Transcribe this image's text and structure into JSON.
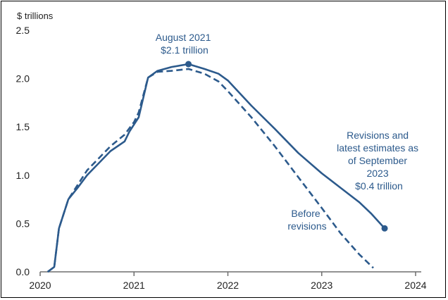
{
  "chart_data": {
    "type": "line",
    "ylabel": "$ trillions",
    "ylim": [
      0,
      2.5
    ],
    "yticks": [
      "0.0",
      "0.5",
      "1.0",
      "1.5",
      "2.0",
      "2.5"
    ],
    "xlim": [
      2020,
      2024
    ],
    "xticks": [
      "2020",
      "2021",
      "2022",
      "2023",
      "2024"
    ],
    "colors": {
      "series": "#2c5a8c",
      "axis": "#6e6e6e",
      "frame": "#000000"
    },
    "series": [
      {
        "name": "Revisions and latest estimates as of September 2023",
        "style": "solid",
        "x": [
          2020.08,
          2020.15,
          2020.2,
          2020.3,
          2020.4,
          2020.5,
          2020.6,
          2020.75,
          2020.9,
          2020.95,
          2021.05,
          2021.15,
          2021.25,
          2021.4,
          2021.58,
          2021.75,
          2021.9,
          2022.0,
          2022.25,
          2022.5,
          2022.75,
          2023.0,
          2023.2,
          2023.4,
          2023.53,
          2023.67
        ],
        "y": [
          0.0,
          0.05,
          0.45,
          0.75,
          0.87,
          1.0,
          1.1,
          1.25,
          1.35,
          1.45,
          1.6,
          2.01,
          2.08,
          2.12,
          2.15,
          2.1,
          2.05,
          1.98,
          1.72,
          1.48,
          1.23,
          1.02,
          0.87,
          0.72,
          0.6,
          0.45
        ]
      },
      {
        "name": "Before revisions",
        "style": "dashed",
        "x": [
          2020.08,
          2020.15,
          2020.2,
          2020.3,
          2020.4,
          2020.5,
          2020.6,
          2020.75,
          2020.9,
          2021.0,
          2021.05,
          2021.15,
          2021.25,
          2021.4,
          2021.58,
          2021.75,
          2021.9,
          2022.0,
          2022.25,
          2022.5,
          2022.75,
          2023.0,
          2023.2,
          2023.4,
          2023.55
        ],
        "y": [
          0.0,
          0.05,
          0.45,
          0.75,
          0.9,
          1.05,
          1.15,
          1.3,
          1.42,
          1.55,
          1.65,
          2.01,
          2.07,
          2.08,
          2.1,
          2.05,
          1.97,
          1.87,
          1.6,
          1.3,
          0.98,
          0.66,
          0.4,
          0.18,
          0.04
        ]
      }
    ],
    "markers": [
      {
        "x": 2021.58,
        "y": 2.15
      },
      {
        "x": 2023.67,
        "y": 0.45
      }
    ],
    "annotations": {
      "peak": [
        "August 2021",
        "$2.1 trillion"
      ],
      "latest": [
        "Revisions and",
        "latest estimates as",
        "of September",
        "2023",
        "$0.4 trillion"
      ],
      "before": [
        "Before",
        "revisions"
      ]
    }
  }
}
